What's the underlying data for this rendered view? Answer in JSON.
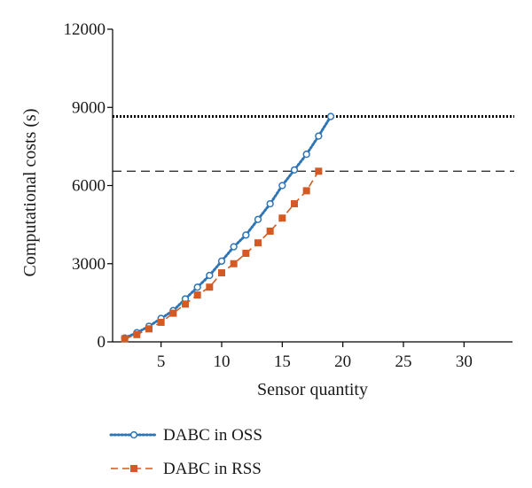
{
  "chart_data": {
    "type": "line",
    "xlabel": "Sensor quantity",
    "ylabel": "Computational costs (s)",
    "xlim": [
      1,
      34
    ],
    "ylim": [
      0,
      12000
    ],
    "xticks": [
      5,
      10,
      15,
      20,
      25,
      30
    ],
    "yticks": [
      0,
      3000,
      6000,
      9000,
      12000
    ],
    "grid": false,
    "legend_position": "bottom-left",
    "series": [
      {
        "name": "DABC in OSS",
        "color": "#2e75b6",
        "line_style": "dotted",
        "marker": "circle",
        "x": [
          2,
          3,
          4,
          5,
          6,
          7,
          8,
          9,
          10,
          11,
          12,
          13,
          14,
          15,
          16,
          17,
          18,
          19
        ],
        "y": [
          150,
          350,
          600,
          900,
          1200,
          1650,
          2100,
          2550,
          3100,
          3650,
          4100,
          4700,
          5300,
          6000,
          6600,
          7200,
          7900,
          8650
        ]
      },
      {
        "name": "DABC in RSS",
        "color": "#d35a22",
        "line_style": "dashed",
        "marker": "square",
        "x": [
          2,
          3,
          4,
          5,
          6,
          7,
          8,
          9,
          10,
          11,
          12,
          13,
          14,
          15,
          16,
          17,
          18
        ],
        "y": [
          120,
          280,
          500,
          750,
          1100,
          1450,
          1800,
          2100,
          2650,
          3000,
          3400,
          3800,
          4250,
          4750,
          5300,
          5800,
          6550
        ]
      }
    ],
    "reference_lines": [
      {
        "y": 8650,
        "style": "dotted",
        "color": "#000000"
      },
      {
        "y": 6550,
        "style": "dashed",
        "color": "#333333"
      }
    ]
  }
}
